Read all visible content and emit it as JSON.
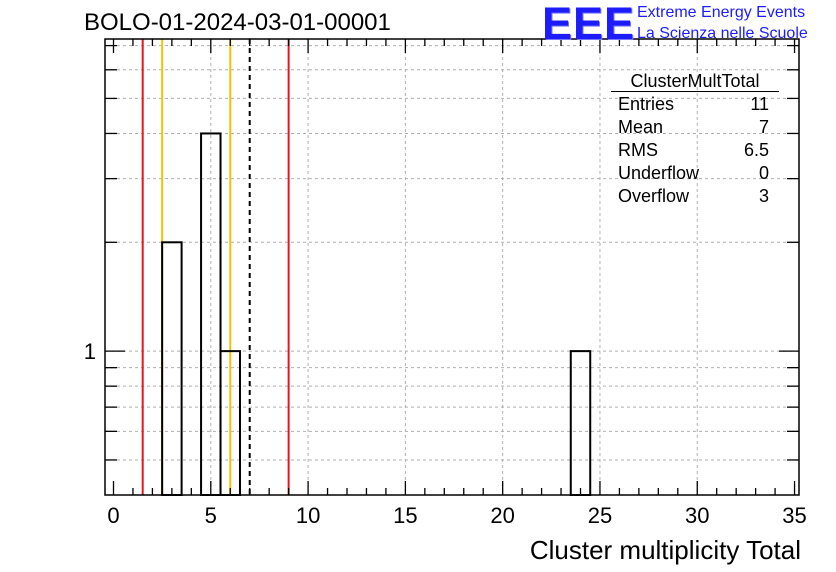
{
  "header": {
    "run_title": "BOLO-01-2024-03-01-00001"
  },
  "logo": {
    "mark": "EEE",
    "line1": "Extreme Energy Events",
    "line2": "La Scienza nelle Scuole",
    "color": "#1c1cff"
  },
  "stats_box": {
    "title": "ClusterMultTotal",
    "rows": [
      {
        "label": "Entries",
        "value": "11"
      },
      {
        "label": "Mean",
        "value": "7"
      },
      {
        "label": "RMS",
        "value": "6.5"
      },
      {
        "label": "Underflow",
        "value": "0"
      },
      {
        "label": "Overflow",
        "value": "3"
      }
    ]
  },
  "chart_data": {
    "type": "histogram",
    "title": "BOLO-01-2024-03-01-00001",
    "xlabel": "Cluster multiplicity Total",
    "ylabel": "",
    "xlim": [
      0,
      35
    ],
    "yscale": "log",
    "ylim": [
      0.4,
      7.3
    ],
    "grid": true,
    "bin_width": 1,
    "bins": [
      {
        "x": 3,
        "count": 2
      },
      {
        "x": 5,
        "count": 4
      },
      {
        "x": 6,
        "count": 1
      },
      {
        "x": 24,
        "count": 1
      }
    ],
    "x_ticks": [
      0,
      5,
      10,
      15,
      20,
      25,
      30,
      35
    ],
    "y_tick_labels": [
      "1"
    ],
    "vertical_lines": [
      {
        "x": 1.5,
        "color": "#e8141e",
        "style": "solid"
      },
      {
        "x": 2.5,
        "color": "#f5c400",
        "style": "solid"
      },
      {
        "x": 6.0,
        "color": "#f5c400",
        "style": "solid"
      },
      {
        "x": 7.0,
        "color": "#000000",
        "style": "dashed"
      },
      {
        "x": 9.0,
        "color": "#e8141e",
        "style": "solid"
      }
    ],
    "line_color": "#000000"
  }
}
